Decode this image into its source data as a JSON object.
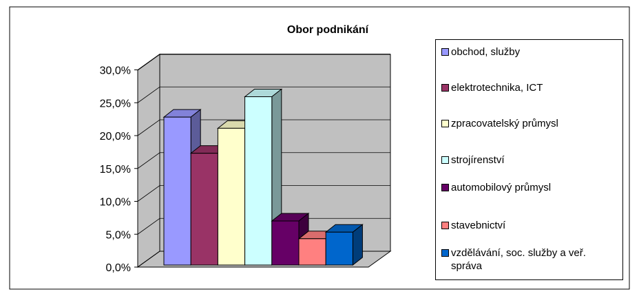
{
  "chart_data": {
    "type": "bar3d",
    "title": "Obor podnikání",
    "series": [
      {
        "name": "obchod, služby",
        "color": "#9999ff",
        "values": [
          22.5
        ]
      },
      {
        "name": "elektrotechnika, ICT",
        "color": "#993366",
        "values": [
          17
        ]
      },
      {
        "name": "zpracovatelský průmysl",
        "color": "#ffffcc",
        "values": [
          20.8
        ]
      },
      {
        "name": "strojírenství",
        "color": "#ccffff",
        "values": [
          25.6
        ]
      },
      {
        "name": "automobilový průmysl",
        "color": "#660066",
        "values": [
          6.7
        ]
      },
      {
        "name": "stavebnictví",
        "color": "#ff8080",
        "values": [
          4
        ]
      },
      {
        "name": "vzdělávání, soc. služby a veř. správa",
        "color": "#0066cc",
        "values": [
          5
        ]
      }
    ],
    "ylim": [
      0,
      30
    ],
    "yticks": [
      {
        "value": 0,
        "label": "0,0%"
      },
      {
        "value": 5,
        "label": "5,0%"
      },
      {
        "value": 10,
        "label": "10,0%"
      },
      {
        "value": 15,
        "label": "15,0%"
      },
      {
        "value": 20,
        "label": "20,0%"
      },
      {
        "value": 25,
        "label": "25,0%"
      },
      {
        "value": 30,
        "label": "30,0%"
      }
    ],
    "grid": true,
    "legend": "right"
  }
}
